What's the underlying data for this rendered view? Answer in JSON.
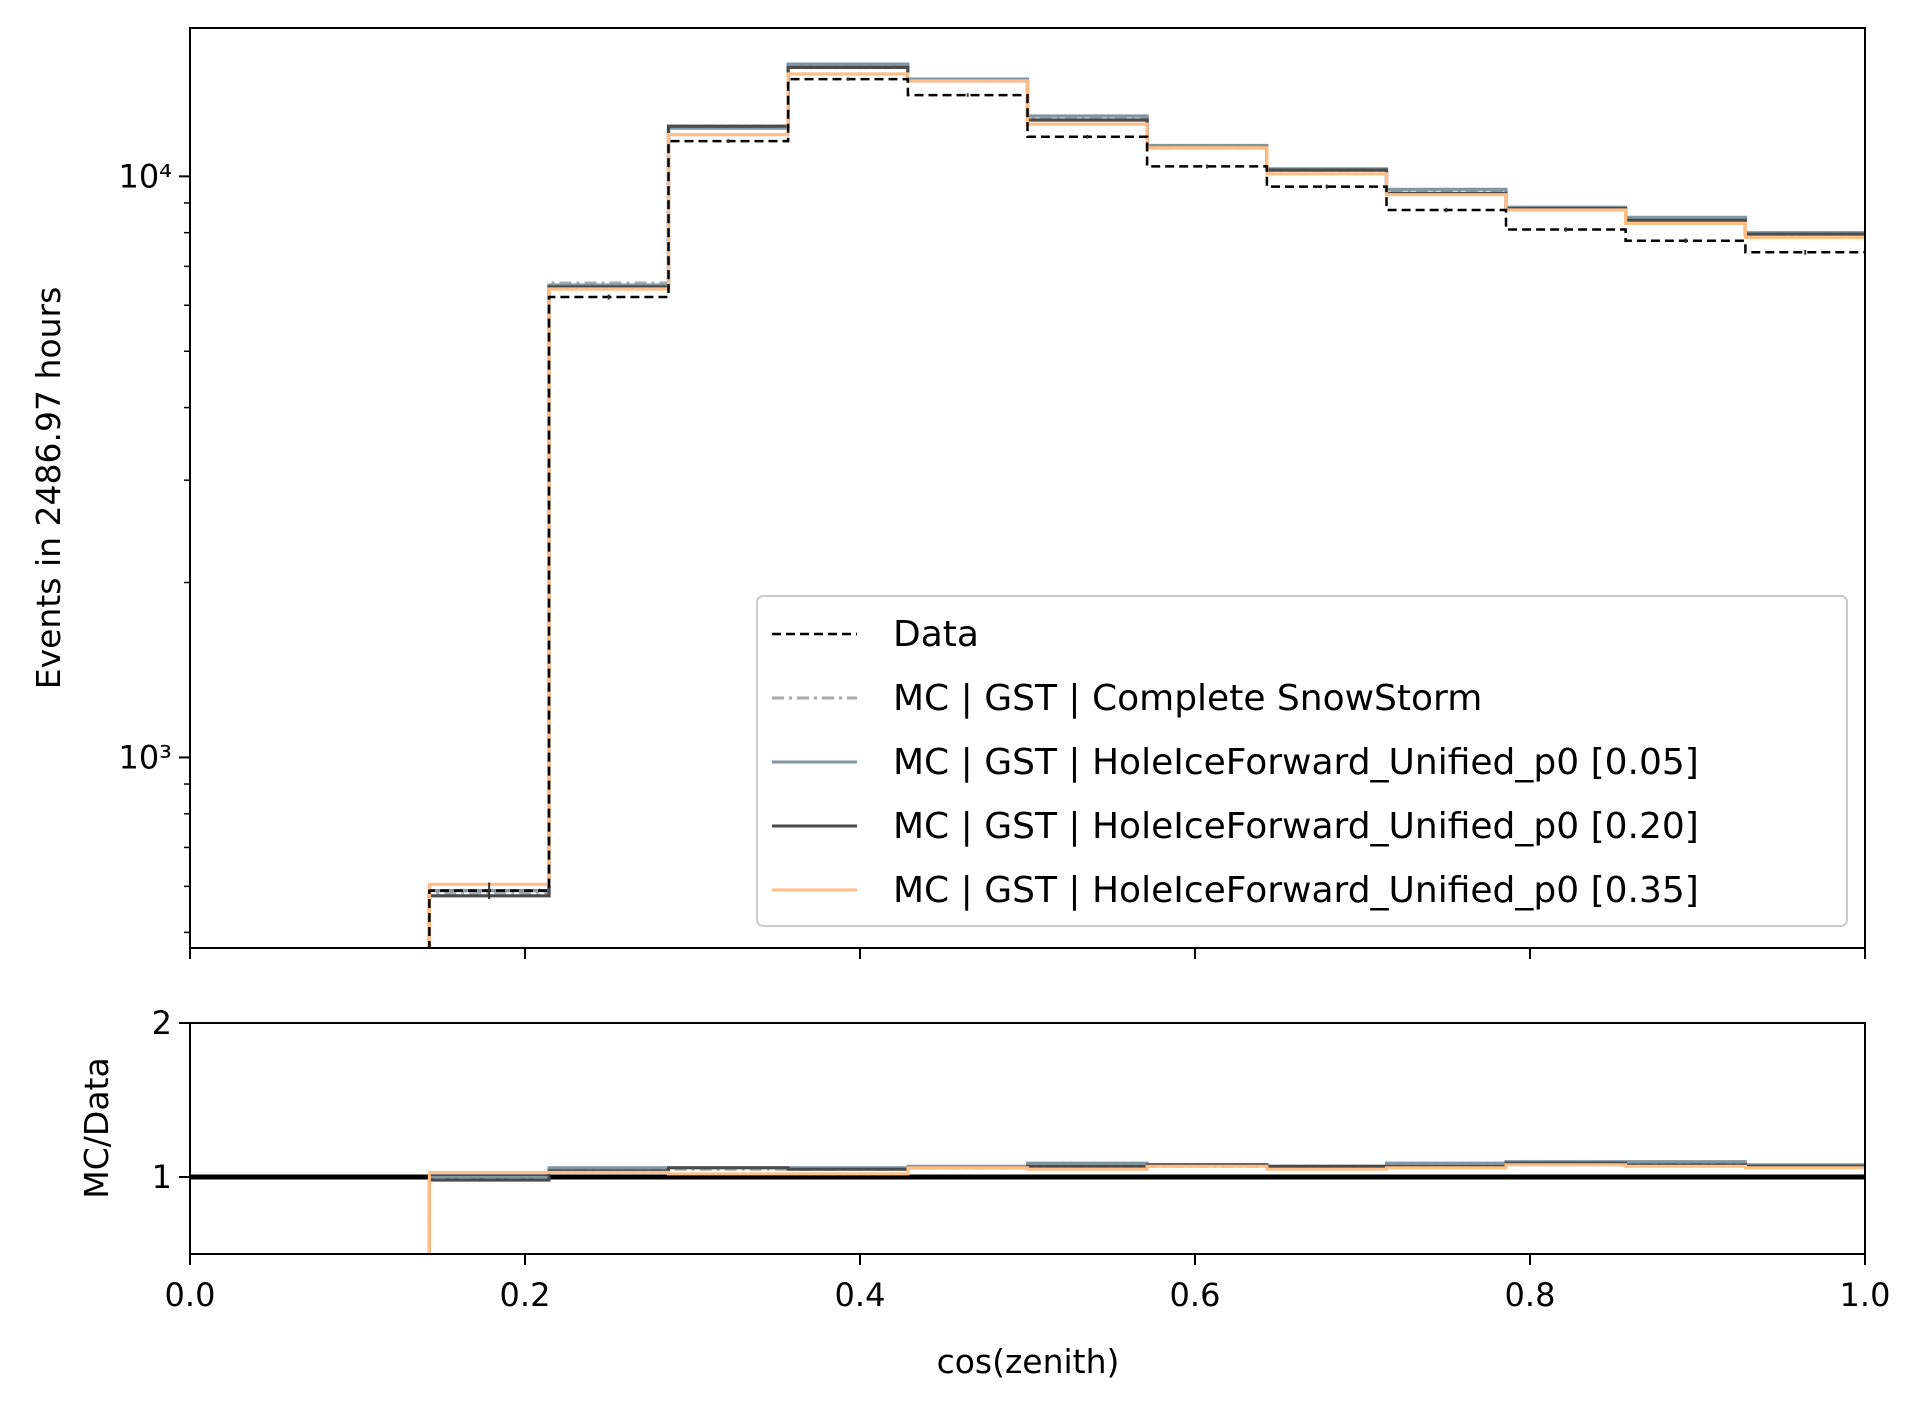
{
  "chart_data": [
    {
      "type": "line",
      "panel": "main",
      "ylabel": "Events in 2486.97 hours",
      "yscale": "log",
      "xlim": [
        0.0,
        1.0
      ],
      "ylim": [
        470,
        18000
      ],
      "y_ticks": [
        {
          "value": 1000,
          "label": "10³"
        },
        {
          "value": 10000,
          "label": "10⁴"
        }
      ],
      "bin_edges": [
        0.1429,
        0.2143,
        0.2857,
        0.3571,
        0.4286,
        0.5,
        0.5714,
        0.6429,
        0.7143,
        0.7857,
        0.8571,
        0.9286,
        1.0
      ],
      "legend_position": "lower right",
      "series": [
        {
          "name": "Data",
          "color": "#000000",
          "style": "dashed",
          "values": [
            590,
            6200,
            11500,
            14700,
            13800,
            11700,
            10400,
            9600,
            8750,
            8100,
            7750,
            7400
          ]
        },
        {
          "name": "MC | GST | Complete SnowStorm",
          "color": "#aaaaaa",
          "style": "dashdot",
          "values": [
            585,
            6550,
            12200,
            15500,
            14600,
            12600,
            11200,
            10250,
            9400,
            8800,
            8450,
            7950
          ]
        },
        {
          "name": "MC | GST | HoleIceForward_Unified_p0 [0.05]",
          "color": "#7f96a3",
          "style": "solid",
          "values": [
            590,
            6500,
            12100,
            15600,
            14700,
            12700,
            11300,
            10300,
            9500,
            8850,
            8500,
            8000
          ]
        },
        {
          "name": "MC | GST | HoleIceForward_Unified_p0 [0.20]",
          "color": "#4a4a4a",
          "style": "solid",
          "values": [
            578,
            6450,
            12200,
            15400,
            14600,
            12500,
            11200,
            10250,
            9350,
            8800,
            8400,
            7950
          ]
        },
        {
          "name": "MC | GST | HoleIceForward_Unified_p0 [0.35]",
          "color": "#ffbe85",
          "style": "solid",
          "values": [
            605,
            6400,
            11800,
            15000,
            14600,
            12300,
            11200,
            10100,
            9300,
            8750,
            8300,
            7850
          ]
        }
      ]
    },
    {
      "type": "line",
      "panel": "ratio",
      "xlabel": "cos(zenith)",
      "ylabel": "MC/Data",
      "xlim": [
        0.0,
        1.0
      ],
      "ylim": [
        0.5,
        2.0
      ],
      "x_ticks": [
        0.0,
        0.2,
        0.4,
        0.6,
        0.8,
        1.0
      ],
      "x_tick_labels": [
        "0.0",
        "0.2",
        "0.4",
        "0.6",
        "0.8",
        "1.0"
      ],
      "y_ticks": [
        1,
        2
      ],
      "y_tick_labels": [
        "1",
        "2"
      ],
      "reference_line": 1.0,
      "bin_edges": [
        0.1429,
        0.2143,
        0.2857,
        0.3571,
        0.4286,
        0.5,
        0.5714,
        0.6429,
        0.7143,
        0.7857,
        0.8571,
        0.9286,
        1.0
      ],
      "series": [
        {
          "name": "MC | GST | Complete SnowStorm",
          "color": "#aaaaaa",
          "style": "dashdot",
          "values": [
            0.99,
            1.05,
            1.05,
            1.05,
            1.06,
            1.07,
            1.07,
            1.06,
            1.07,
            1.08,
            1.09,
            1.07
          ]
        },
        {
          "name": "MC | GST | HoleIceForward_Unified_p0 [0.05]",
          "color": "#7f96a3",
          "style": "solid",
          "values": [
            1.0,
            1.06,
            1.06,
            1.06,
            1.07,
            1.09,
            1.08,
            1.07,
            1.09,
            1.1,
            1.1,
            1.08
          ]
        },
        {
          "name": "MC | GST | HoleIceForward_Unified_p0 [0.20]",
          "color": "#4a4a4a",
          "style": "solid",
          "values": [
            0.98,
            1.04,
            1.06,
            1.05,
            1.06,
            1.07,
            1.08,
            1.07,
            1.07,
            1.09,
            1.08,
            1.07
          ]
        },
        {
          "name": "MC | GST | HoleIceForward_Unified_p0 [0.35]",
          "color": "#ffbe85",
          "style": "solid",
          "values": [
            1.03,
            1.03,
            1.02,
            1.02,
            1.06,
            1.05,
            1.07,
            1.05,
            1.06,
            1.08,
            1.07,
            1.06
          ]
        }
      ]
    }
  ]
}
